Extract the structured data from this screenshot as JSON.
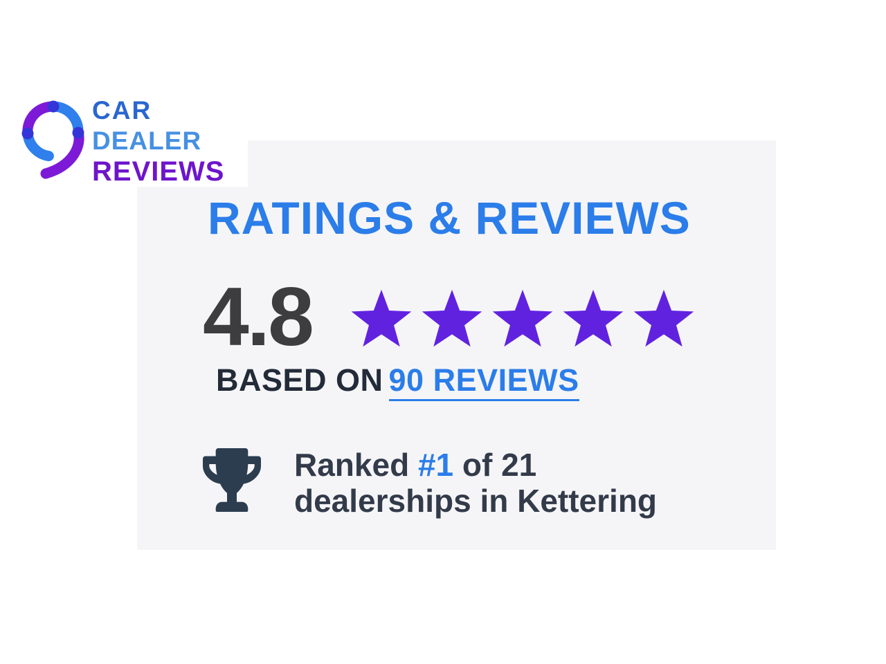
{
  "brand": {
    "line1": "CAR",
    "line2": "DEALER",
    "line3": "REVIEWS",
    "logo_icon": "ring-with-tail",
    "colors": {
      "line1_blue": "#2a66cf",
      "line2_light_blue": "#4690e2",
      "line3_purple": "#6e15cb",
      "ring_blue": "#2f80ed",
      "ring_purple": "#7d1ad8",
      "ring_dot_indigo": "#3335d8"
    }
  },
  "panel": {
    "background": "#f5f5f7",
    "heading": "RATINGS & REVIEWS",
    "rating": {
      "score": "4.8",
      "stars": 5,
      "star_color": "#6122e0"
    },
    "based_on": {
      "prefix": "BASED ON",
      "link": "90 REVIEWS"
    },
    "ranking": {
      "icon": "trophy-icon",
      "prefix": "Ranked ",
      "rank": "#1",
      "suffix": " of 21",
      "line2": "dealerships in Kettering"
    }
  },
  "colors": {
    "accent_blue": "#2b7de9",
    "score_text": "#3d3d3f",
    "based_on_text": "#232b39",
    "ranked_text": "#333b4a",
    "trophy": "#2c3d4f"
  }
}
